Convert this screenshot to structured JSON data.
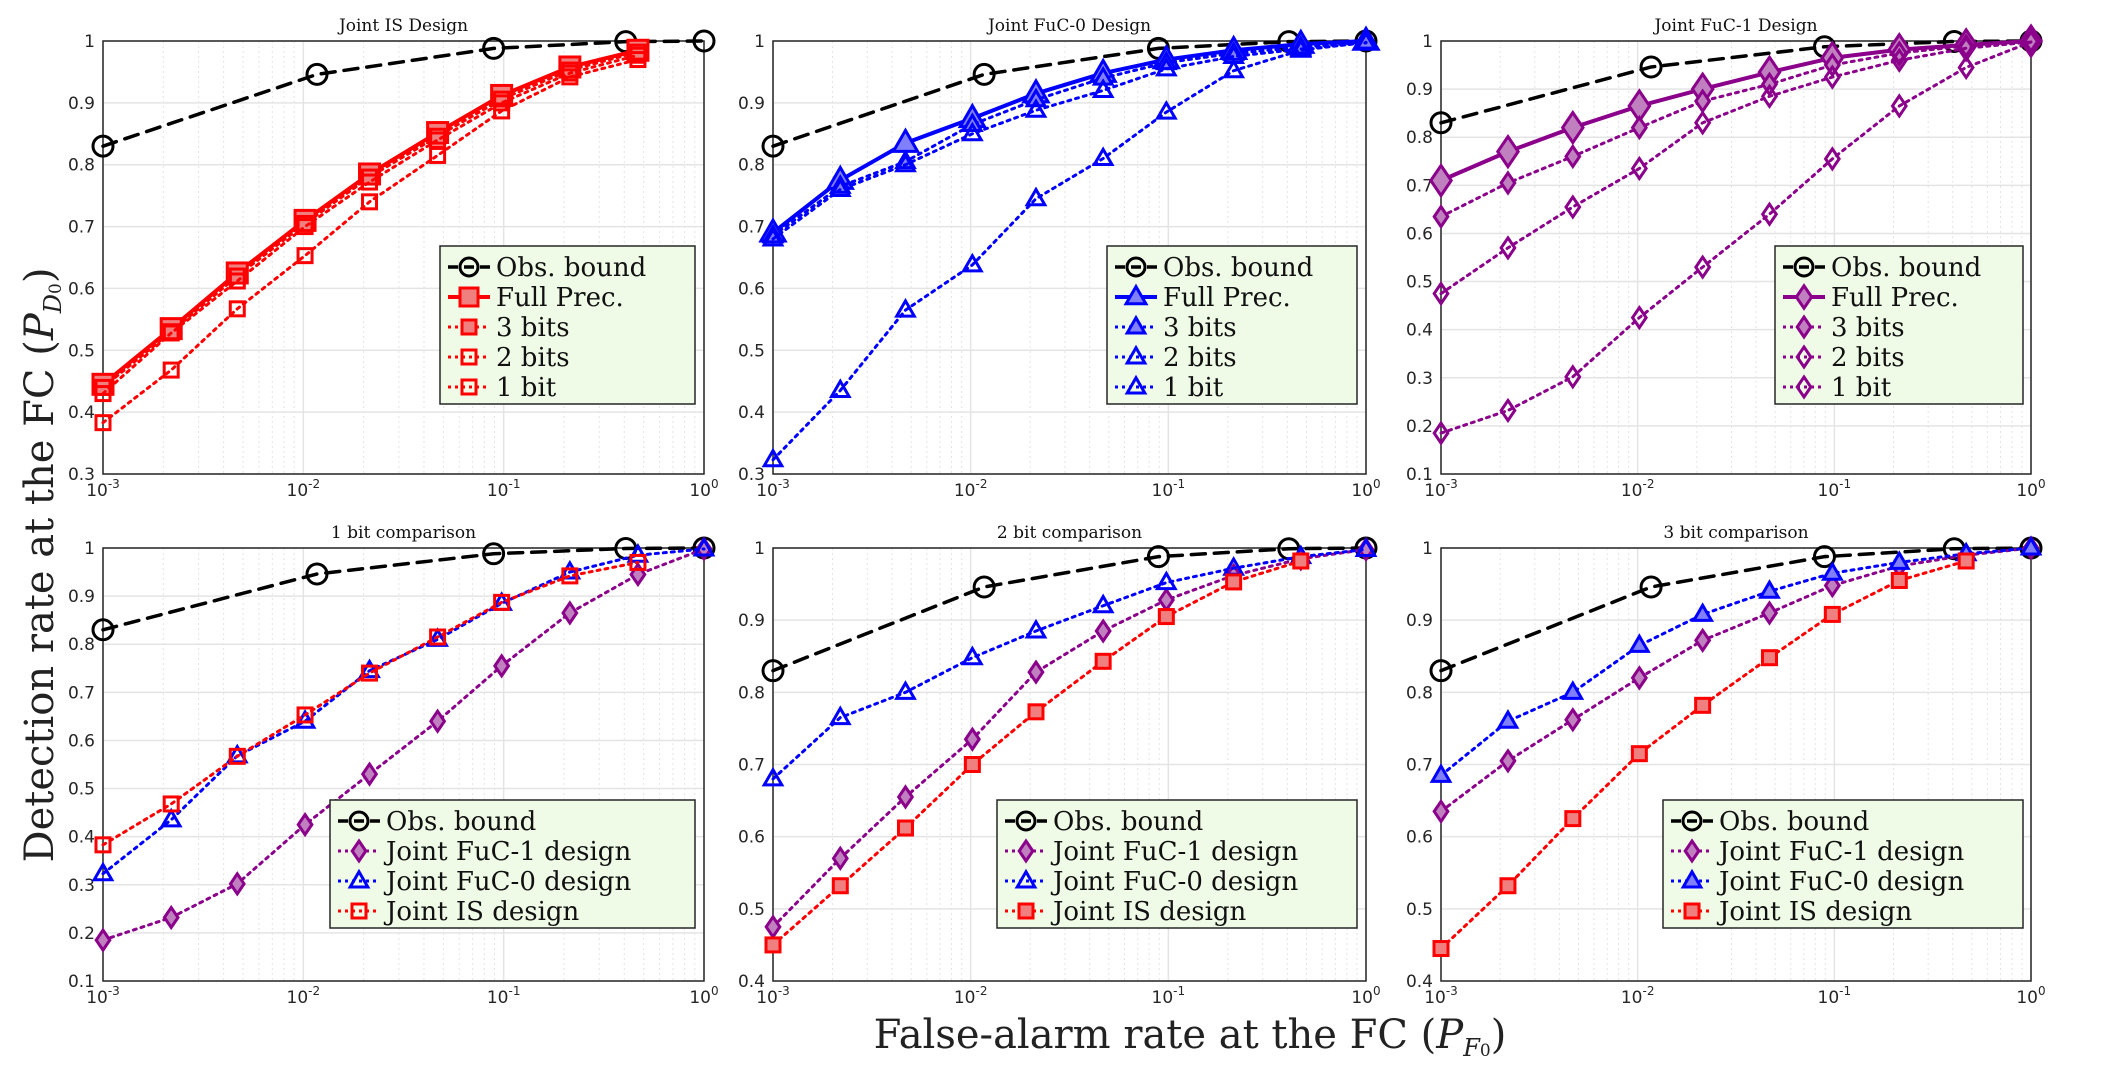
{
  "figure": {
    "ylabel_text": "Detection rate at the FC (",
    "ylabel_sym": "P",
    "ylabel_sub": "D",
    "ylabel_subsub": "0",
    "ylabel_close": ")",
    "xlabel_text": "False-alarm rate at the FC (",
    "xlabel_sym": "P",
    "xlabel_sub": "F",
    "xlabel_subsub": "0",
    "xlabel_close": ")"
  },
  "colors": {
    "black": "#000000",
    "red": "#ff0000",
    "red_fill": "#f08080",
    "blue": "#0000ff",
    "blue_fill": "#8080ff",
    "purple": "#8b008b",
    "purple_fill": "#c080c0",
    "legend_bg": "#effbe6",
    "grid": "#e4e4e4"
  },
  "x_ticks": [
    {
      "value": 0.001,
      "exp": "-3"
    },
    {
      "value": 0.01,
      "exp": "-2"
    },
    {
      "value": 0.1,
      "exp": "-1"
    },
    {
      "value": 1,
      "exp": "0"
    }
  ],
  "x_tick_base": "10",
  "chart_data": [
    {
      "type": "line",
      "title": "Joint IS Design",
      "xscale": "log",
      "xlim": [
        0.001,
        1
      ],
      "ylim": [
        0.3,
        1
      ],
      "yticks": [
        "0.3",
        "0.4",
        "0.5",
        "0.6",
        "0.7",
        "0.8",
        "0.9",
        "1"
      ],
      "legend_position": "bottom-right",
      "series": [
        {
          "name": "Obs. bound",
          "marker": "circle",
          "color": "black",
          "style": "dashed",
          "width": 3.5,
          "size": 20,
          "filled": false,
          "x": [
            0.001,
            0.0117,
            0.0891,
            0.407,
            1
          ],
          "y": [
            0.83,
            0.946,
            0.988,
            0.999,
            1.0
          ]
        },
        {
          "name": "Full Prec.",
          "marker": "square",
          "color": "red",
          "style": "solid",
          "width": 4,
          "size": 20,
          "filled": true,
          "x": [
            0.001,
            0.00219,
            0.00468,
            0.0102,
            0.0214,
            0.0468,
            0.0977,
            0.214,
            0.468
          ],
          "y": [
            0.445,
            0.535,
            0.625,
            0.71,
            0.785,
            0.852,
            0.912,
            0.958,
            0.985
          ]
        },
        {
          "name": "3 bits",
          "marker": "square",
          "color": "red",
          "style": "dotted",
          "width": 3,
          "size": 14,
          "filled": true,
          "x": [
            0.001,
            0.00219,
            0.00468,
            0.0102,
            0.0214,
            0.0468,
            0.0977,
            0.214,
            0.468
          ],
          "y": [
            0.44,
            0.53,
            0.62,
            0.705,
            0.78,
            0.846,
            0.906,
            0.953,
            0.982
          ]
        },
        {
          "name": "2 bits",
          "marker": "square",
          "color": "red",
          "style": "dotted",
          "width": 3,
          "size": 14,
          "filled": false,
          "x": [
            0.001,
            0.00219,
            0.00468,
            0.0102,
            0.0214,
            0.0468,
            0.0977,
            0.214,
            0.468
          ],
          "y": [
            0.43,
            0.528,
            0.612,
            0.7,
            0.772,
            0.84,
            0.9,
            0.948,
            0.977
          ]
        },
        {
          "name": "1 bit",
          "marker": "square",
          "color": "red",
          "style": "dotted",
          "width": 3,
          "size": 14,
          "filled": false,
          "x": [
            0.001,
            0.00219,
            0.00468,
            0.0102,
            0.0214,
            0.0468,
            0.0977,
            0.214,
            0.468
          ],
          "y": [
            0.383,
            0.468,
            0.567,
            0.653,
            0.74,
            0.815,
            0.887,
            0.942,
            0.97
          ]
        }
      ]
    },
    {
      "type": "line",
      "title": "Joint FuC-0 Design",
      "xscale": "log",
      "xlim": [
        0.001,
        1
      ],
      "ylim": [
        0.3,
        1
      ],
      "yticks": [
        "0.3",
        "0.4",
        "0.5",
        "0.6",
        "0.7",
        "0.8",
        "0.9",
        "1"
      ],
      "legend_position": "bottom-right",
      "series": [
        {
          "name": "Obs. bound",
          "marker": "circle",
          "color": "black",
          "style": "dashed",
          "width": 3.5,
          "size": 20,
          "filled": false,
          "x": [
            0.001,
            0.0117,
            0.0891,
            0.407,
            1
          ],
          "y": [
            0.83,
            0.946,
            0.988,
            0.999,
            1.0
          ]
        },
        {
          "name": "Full Prec.",
          "marker": "triangle",
          "color": "blue",
          "style": "solid",
          "width": 4,
          "size": 22,
          "filled": true,
          "x": [
            0.001,
            0.00219,
            0.00468,
            0.0102,
            0.0214,
            0.0468,
            0.0977,
            0.214,
            0.468,
            1
          ],
          "y": [
            0.69,
            0.775,
            0.835,
            0.875,
            0.915,
            0.948,
            0.97,
            0.985,
            0.995,
            1.0
          ]
        },
        {
          "name": "3 bits",
          "marker": "triangle",
          "color": "blue",
          "style": "dotted",
          "width": 3,
          "size": 16,
          "filled": true,
          "x": [
            0.001,
            0.00219,
            0.00468,
            0.0102,
            0.0214,
            0.0468,
            0.0977,
            0.214,
            0.468,
            1
          ],
          "y": [
            0.685,
            0.765,
            0.805,
            0.865,
            0.905,
            0.94,
            0.965,
            0.98,
            0.99,
            0.998
          ]
        },
        {
          "name": "2 bits",
          "marker": "triangle",
          "color": "blue",
          "style": "dotted",
          "width": 3,
          "size": 16,
          "filled": false,
          "x": [
            0.001,
            0.00219,
            0.00468,
            0.0102,
            0.0214,
            0.0468,
            0.0977,
            0.214,
            0.468,
            1
          ],
          "y": [
            0.68,
            0.76,
            0.8,
            0.85,
            0.888,
            0.92,
            0.955,
            0.975,
            0.987,
            0.997
          ]
        },
        {
          "name": "1 bit",
          "marker": "triangle",
          "color": "blue",
          "style": "dotted",
          "width": 3,
          "size": 16,
          "filled": false,
          "x": [
            0.001,
            0.00219,
            0.00468,
            0.0102,
            0.0214,
            0.0468,
            0.0977,
            0.214,
            0.468,
            1
          ],
          "y": [
            0.323,
            0.435,
            0.565,
            0.638,
            0.745,
            0.81,
            0.885,
            0.952,
            0.985,
            0.998
          ]
        }
      ]
    },
    {
      "type": "line",
      "title": "Joint FuC-1 Design",
      "xscale": "log",
      "xlim": [
        0.001,
        1
      ],
      "ylim": [
        0.1,
        1
      ],
      "yticks": [
        "0.1",
        "0.2",
        "0.3",
        "0.4",
        "0.5",
        "0.6",
        "0.7",
        "0.8",
        "0.9",
        "1"
      ],
      "legend_position": "bottom-right",
      "series": [
        {
          "name": "Obs. bound",
          "marker": "circle",
          "color": "black",
          "style": "dashed",
          "width": 3.5,
          "size": 20,
          "filled": false,
          "x": [
            0.001,
            0.0117,
            0.0891,
            0.407,
            1
          ],
          "y": [
            0.83,
            0.946,
            0.988,
            0.999,
            1.0
          ]
        },
        {
          "name": "Full Prec.",
          "marker": "diamond",
          "color": "purple",
          "style": "solid",
          "width": 4,
          "size": 24,
          "filled": true,
          "x": [
            0.001,
            0.00219,
            0.00468,
            0.0102,
            0.0214,
            0.0468,
            0.0977,
            0.214,
            0.468,
            1
          ],
          "y": [
            0.71,
            0.77,
            0.82,
            0.865,
            0.9,
            0.935,
            0.965,
            0.982,
            0.992,
            1.0
          ]
        },
        {
          "name": "3 bits",
          "marker": "diamond",
          "color": "purple",
          "style": "dotted",
          "width": 3,
          "size": 16,
          "filled": true,
          "x": [
            0.001,
            0.00219,
            0.00468,
            0.0102,
            0.0214,
            0.0468,
            0.0977,
            0.214,
            0.468,
            1
          ],
          "y": [
            0.635,
            0.705,
            0.76,
            0.82,
            0.875,
            0.91,
            0.95,
            0.975,
            0.99,
            1.0
          ]
        },
        {
          "name": "2 bits",
          "marker": "diamond",
          "color": "purple",
          "style": "dotted",
          "width": 3,
          "size": 16,
          "filled": false,
          "x": [
            0.001,
            0.00219,
            0.00468,
            0.0102,
            0.0214,
            0.0468,
            0.0977,
            0.214,
            0.468,
            1
          ],
          "y": [
            0.475,
            0.57,
            0.655,
            0.735,
            0.83,
            0.885,
            0.925,
            0.96,
            0.985,
            0.998
          ]
        },
        {
          "name": "1 bit",
          "marker": "diamond",
          "color": "purple",
          "style": "dotted",
          "width": 3,
          "size": 16,
          "filled": false,
          "x": [
            0.001,
            0.00219,
            0.00468,
            0.0102,
            0.0214,
            0.0468,
            0.0977,
            0.214,
            0.468,
            1
          ],
          "y": [
            0.185,
            0.232,
            0.302,
            0.425,
            0.53,
            0.64,
            0.755,
            0.865,
            0.945,
            0.998
          ]
        }
      ]
    },
    {
      "type": "line",
      "title": "1 bit comparison",
      "xscale": "log",
      "xlim": [
        0.001,
        1
      ],
      "ylim": [
        0.1,
        1
      ],
      "yticks": [
        "0.1",
        "0.2",
        "0.3",
        "0.4",
        "0.5",
        "0.6",
        "0.7",
        "0.8",
        "0.9",
        "1"
      ],
      "legend_position": "bottom-right",
      "series": [
        {
          "name": "Obs. bound",
          "marker": "circle",
          "color": "black",
          "style": "dashed",
          "width": 3.5,
          "size": 20,
          "filled": false,
          "x": [
            0.001,
            0.0117,
            0.0891,
            0.407,
            1
          ],
          "y": [
            0.83,
            0.946,
            0.988,
            0.999,
            1.0
          ]
        },
        {
          "name": "Joint FuC-1 design",
          "marker": "diamond",
          "color": "purple",
          "style": "dotted",
          "width": 3,
          "size": 16,
          "filled": true,
          "x": [
            0.001,
            0.00219,
            0.00468,
            0.0102,
            0.0214,
            0.0468,
            0.0977,
            0.214,
            0.468,
            1
          ],
          "y": [
            0.185,
            0.232,
            0.302,
            0.425,
            0.53,
            0.64,
            0.755,
            0.865,
            0.945,
            0.998
          ]
        },
        {
          "name": "Joint FuC-0 design",
          "marker": "triangle",
          "color": "blue",
          "style": "dotted",
          "width": 3,
          "size": 16,
          "filled": false,
          "x": [
            0.001,
            0.00219,
            0.00468,
            0.0102,
            0.0214,
            0.0468,
            0.0977,
            0.214,
            0.468,
            1
          ],
          "y": [
            0.323,
            0.435,
            0.568,
            0.64,
            0.745,
            0.81,
            0.885,
            0.95,
            0.985,
            0.998
          ]
        },
        {
          "name": "Joint IS design",
          "marker": "square",
          "color": "red",
          "style": "dotted",
          "width": 3,
          "size": 14,
          "filled": false,
          "x": [
            0.001,
            0.00219,
            0.00468,
            0.0102,
            0.0214,
            0.0468,
            0.0977,
            0.214,
            0.468
          ],
          "y": [
            0.383,
            0.468,
            0.567,
            0.653,
            0.74,
            0.815,
            0.887,
            0.942,
            0.97
          ]
        }
      ]
    },
    {
      "type": "line",
      "title": "2 bit comparison",
      "xscale": "log",
      "xlim": [
        0.001,
        1
      ],
      "ylim": [
        0.4,
        1
      ],
      "yticks": [
        "0.4",
        "0.5",
        "0.6",
        "0.7",
        "0.8",
        "0.9",
        "1"
      ],
      "legend_position": "bottom-right",
      "series": [
        {
          "name": "Obs. bound",
          "marker": "circle",
          "color": "black",
          "style": "dashed",
          "width": 3.5,
          "size": 20,
          "filled": false,
          "x": [
            0.001,
            0.0117,
            0.0891,
            0.407,
            1
          ],
          "y": [
            0.83,
            0.946,
            0.988,
            0.999,
            1.0
          ]
        },
        {
          "name": "Joint FuC-1 design",
          "marker": "diamond",
          "color": "purple",
          "style": "dotted",
          "width": 3,
          "size": 16,
          "filled": true,
          "x": [
            0.001,
            0.00219,
            0.00468,
            0.0102,
            0.0214,
            0.0468,
            0.0977,
            0.214,
            0.468,
            1
          ],
          "y": [
            0.475,
            0.57,
            0.655,
            0.735,
            0.828,
            0.885,
            0.928,
            0.962,
            0.985,
            0.998
          ]
        },
        {
          "name": "Joint FuC-0 design",
          "marker": "triangle",
          "color": "blue",
          "style": "dotted",
          "width": 3,
          "size": 16,
          "filled": false,
          "x": [
            0.001,
            0.00219,
            0.00468,
            0.0102,
            0.0214,
            0.0468,
            0.0977,
            0.214,
            0.468,
            1
          ],
          "y": [
            0.68,
            0.765,
            0.8,
            0.848,
            0.885,
            0.92,
            0.952,
            0.972,
            0.988,
            0.998
          ]
        },
        {
          "name": "Joint IS design",
          "marker": "square",
          "color": "red",
          "style": "dotted",
          "width": 3,
          "size": 14,
          "filled": true,
          "x": [
            0.001,
            0.00219,
            0.00468,
            0.0102,
            0.0214,
            0.0468,
            0.0977,
            0.214,
            0.468
          ],
          "y": [
            0.45,
            0.532,
            0.612,
            0.7,
            0.773,
            0.843,
            0.905,
            0.953,
            0.982
          ]
        }
      ]
    },
    {
      "type": "line",
      "title": "3 bit comparison",
      "xscale": "log",
      "xlim": [
        0.001,
        1
      ],
      "ylim": [
        0.4,
        1
      ],
      "yticks": [
        "0.4",
        "0.5",
        "0.6",
        "0.7",
        "0.8",
        "0.9",
        "1"
      ],
      "legend_position": "bottom-right",
      "series": [
        {
          "name": "Obs. bound",
          "marker": "circle",
          "color": "black",
          "style": "dashed",
          "width": 3.5,
          "size": 20,
          "filled": false,
          "x": [
            0.001,
            0.0117,
            0.0891,
            0.407,
            1
          ],
          "y": [
            0.83,
            0.946,
            0.988,
            0.999,
            1.0
          ]
        },
        {
          "name": "Joint FuC-1 design",
          "marker": "diamond",
          "color": "purple",
          "style": "dotted",
          "width": 3,
          "size": 16,
          "filled": true,
          "x": [
            0.001,
            0.00219,
            0.00468,
            0.0102,
            0.0214,
            0.0468,
            0.0977,
            0.214,
            0.468,
            1
          ],
          "y": [
            0.635,
            0.705,
            0.762,
            0.82,
            0.872,
            0.91,
            0.948,
            0.975,
            0.99,
            1.0
          ]
        },
        {
          "name": "Joint FuC-0 design",
          "marker": "triangle",
          "color": "blue",
          "style": "dotted",
          "width": 3,
          "size": 16,
          "filled": true,
          "x": [
            0.001,
            0.00219,
            0.00468,
            0.0102,
            0.0214,
            0.0468,
            0.0977,
            0.214,
            0.468,
            1
          ],
          "y": [
            0.685,
            0.76,
            0.8,
            0.865,
            0.908,
            0.94,
            0.965,
            0.98,
            0.992,
            1.0
          ]
        },
        {
          "name": "Joint IS design",
          "marker": "square",
          "color": "red",
          "style": "dotted",
          "width": 3,
          "size": 14,
          "filled": true,
          "x": [
            0.001,
            0.00219,
            0.00468,
            0.0102,
            0.0214,
            0.0468,
            0.0977,
            0.214,
            0.468
          ],
          "y": [
            0.445,
            0.532,
            0.625,
            0.715,
            0.782,
            0.848,
            0.908,
            0.955,
            0.982
          ]
        }
      ]
    }
  ]
}
